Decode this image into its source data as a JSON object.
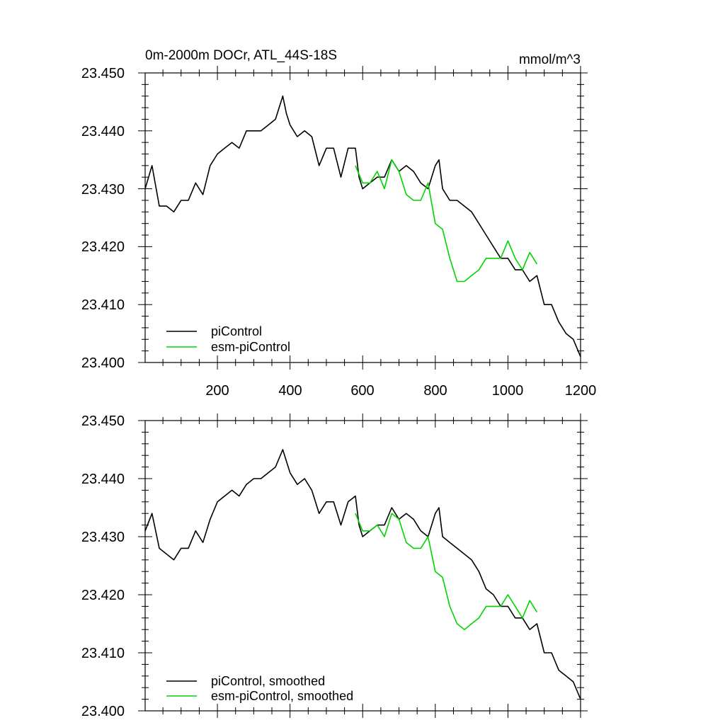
{
  "chart_data": [
    {
      "type": "line",
      "title": "0m-2000m DOCr, ATL_44S-18S",
      "units": "mmol/m^3",
      "xlim": [
        1,
        1200
      ],
      "ylim": [
        23.4,
        23.45
      ],
      "xticks": [
        200,
        400,
        600,
        800,
        1000,
        1200
      ],
      "yticks": [
        "23.400",
        "23.410",
        "23.420",
        "23.430",
        "23.440",
        "23.450"
      ],
      "series": [
        {
          "name": "piControl",
          "color": "#000000",
          "x": [
            1,
            20,
            40,
            60,
            80,
            100,
            120,
            140,
            160,
            180,
            200,
            220,
            240,
            260,
            280,
            300,
            320,
            340,
            360,
            380,
            390,
            400,
            420,
            440,
            460,
            480,
            500,
            520,
            540,
            560,
            580,
            590,
            600,
            620,
            640,
            660,
            680,
            700,
            720,
            740,
            760,
            780,
            800,
            810,
            820,
            840,
            860,
            880,
            900,
            920,
            940,
            960,
            980,
            1000,
            1020,
            1040,
            1060,
            1080,
            1100,
            1120,
            1140,
            1160,
            1180,
            1200
          ],
          "y": [
            23.43,
            23.434,
            23.427,
            23.427,
            23.426,
            23.428,
            23.428,
            23.431,
            23.429,
            23.434,
            23.436,
            23.437,
            23.438,
            23.437,
            23.44,
            23.44,
            23.44,
            23.441,
            23.442,
            23.446,
            23.443,
            23.441,
            23.439,
            23.44,
            23.439,
            23.434,
            23.437,
            23.437,
            23.432,
            23.437,
            23.437,
            23.432,
            23.43,
            23.431,
            23.432,
            23.432,
            23.435,
            23.433,
            23.434,
            23.433,
            23.431,
            23.43,
            23.434,
            23.435,
            23.43,
            23.428,
            23.428,
            23.427,
            23.426,
            23.424,
            23.422,
            23.42,
            23.418,
            23.418,
            23.416,
            23.416,
            23.414,
            23.415,
            23.41,
            23.41,
            23.407,
            23.405,
            23.404,
            23.401
          ]
        },
        {
          "name": "esm-piControl",
          "color": "#00d400",
          "x": [
            580,
            600,
            620,
            640,
            660,
            680,
            700,
            720,
            740,
            760,
            780,
            800,
            820,
            840,
            860,
            880,
            900,
            920,
            940,
            960,
            980,
            1000,
            1020,
            1040,
            1060,
            1080
          ],
          "y": [
            23.434,
            23.431,
            23.431,
            23.433,
            23.43,
            23.435,
            23.433,
            23.429,
            23.428,
            23.428,
            23.431,
            23.424,
            23.423,
            23.418,
            23.414,
            23.414,
            23.415,
            23.416,
            23.418,
            23.418,
            23.418,
            23.421,
            23.418,
            23.416,
            23.419,
            23.417
          ]
        }
      ],
      "legend": {
        "position": "bottom-left",
        "entries": [
          "piControl",
          "esm-piControl"
        ]
      }
    },
    {
      "type": "line",
      "title": "",
      "xlim": [
        1,
        1200
      ],
      "ylim": [
        23.4,
        23.45
      ],
      "xticks": [
        200,
        400,
        600,
        800,
        1000,
        1200
      ],
      "yticks": [
        "23.400",
        "23.410",
        "23.420",
        "23.430",
        "23.440",
        "23.450"
      ],
      "series": [
        {
          "name": "piControl, smoothed",
          "color": "#000000",
          "x": [
            1,
            20,
            40,
            60,
            80,
            100,
            120,
            140,
            160,
            180,
            200,
            220,
            240,
            260,
            280,
            300,
            320,
            340,
            360,
            380,
            390,
            400,
            420,
            440,
            460,
            480,
            500,
            520,
            540,
            560,
            580,
            590,
            600,
            620,
            640,
            660,
            680,
            700,
            720,
            740,
            760,
            780,
            800,
            810,
            820,
            840,
            860,
            880,
            900,
            920,
            940,
            960,
            980,
            1000,
            1020,
            1040,
            1060,
            1080,
            1100,
            1120,
            1140,
            1160,
            1180,
            1200
          ],
          "y": [
            23.431,
            23.434,
            23.428,
            23.427,
            23.426,
            23.428,
            23.428,
            23.431,
            23.429,
            23.433,
            23.436,
            23.437,
            23.438,
            23.437,
            23.439,
            23.44,
            23.44,
            23.441,
            23.442,
            23.445,
            23.443,
            23.441,
            23.439,
            23.44,
            23.438,
            23.434,
            23.436,
            23.436,
            23.432,
            23.436,
            23.437,
            23.432,
            23.43,
            23.431,
            23.432,
            23.432,
            23.435,
            23.433,
            23.434,
            23.433,
            23.431,
            23.43,
            23.434,
            23.435,
            23.43,
            23.429,
            23.428,
            23.427,
            23.426,
            23.424,
            23.421,
            23.42,
            23.418,
            23.418,
            23.416,
            23.416,
            23.414,
            23.415,
            23.41,
            23.41,
            23.407,
            23.406,
            23.405,
            23.402
          ]
        },
        {
          "name": "esm-piControl, smoothed",
          "color": "#00d400",
          "x": [
            580,
            600,
            620,
            640,
            660,
            680,
            700,
            720,
            740,
            760,
            780,
            800,
            820,
            840,
            860,
            880,
            900,
            920,
            940,
            960,
            980,
            1000,
            1020,
            1040,
            1060,
            1080
          ],
          "y": [
            23.434,
            23.431,
            23.431,
            23.432,
            23.43,
            23.434,
            23.433,
            23.429,
            23.428,
            23.428,
            23.43,
            23.424,
            23.423,
            23.418,
            23.415,
            23.414,
            23.415,
            23.416,
            23.418,
            23.418,
            23.418,
            23.42,
            23.418,
            23.416,
            23.419,
            23.417
          ]
        }
      ],
      "legend": {
        "position": "bottom-left",
        "entries": [
          "piControl, smoothed",
          "esm-piControl, smoothed"
        ]
      }
    }
  ]
}
